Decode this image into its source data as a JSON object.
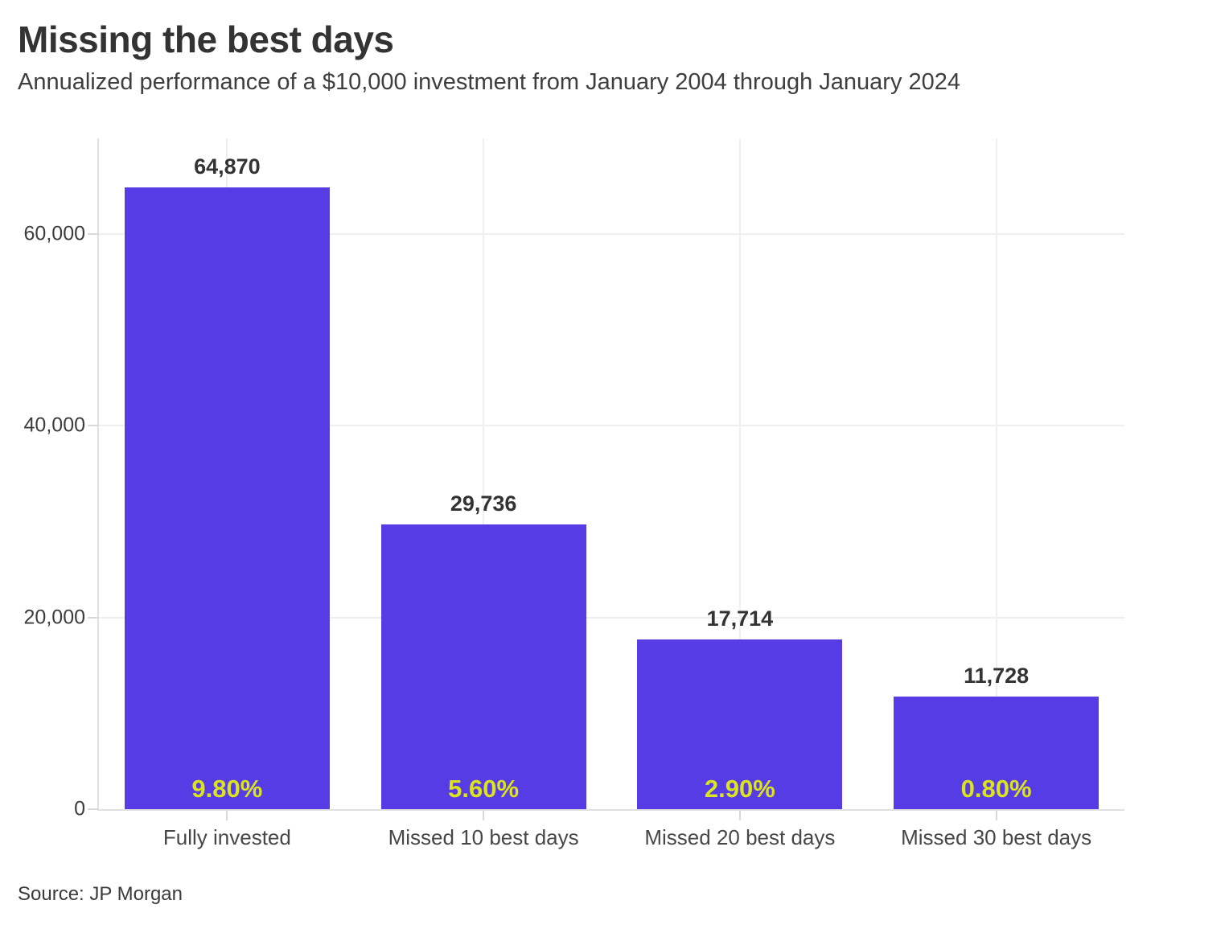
{
  "header": {
    "title": "Missing the best days",
    "subtitle": "Annualized performance of a $10,000 investment from January 2004 through January 2024"
  },
  "footer": {
    "source": "Source: JP Morgan"
  },
  "chart_data": {
    "type": "bar",
    "title": "Missing the best days",
    "subtitle": "Annualized performance of a $10,000 investment from January 2004 through January 2024",
    "source": "Source: JP Morgan",
    "categories": [
      "Fully invested",
      "Missed 10 best days",
      "Missed 20 best days",
      "Missed 30 best days"
    ],
    "values": [
      64870,
      29736,
      17714,
      11728
    ],
    "value_labels": [
      "64,870",
      "29,736",
      "17,714",
      "11,728"
    ],
    "percent_labels": [
      "9.80%",
      "5.60%",
      "2.90%",
      "0.80%"
    ],
    "xlabel": "",
    "ylabel": "",
    "ylim": [
      0,
      70000
    ],
    "y_ticks": {
      "values": [
        0,
        20000,
        40000,
        60000
      ],
      "labels": [
        "0",
        "20,000",
        "40,000",
        "60,000"
      ]
    },
    "grid": true,
    "legend": "none",
    "colors": {
      "bar": "#553ce4",
      "percent_label": "#dce41e",
      "title_text": "#333333",
      "axis_text": "#3d3d3d",
      "gridline": "#efefef",
      "axis_line": "#e0e0e0",
      "background": "#ffffff"
    }
  }
}
